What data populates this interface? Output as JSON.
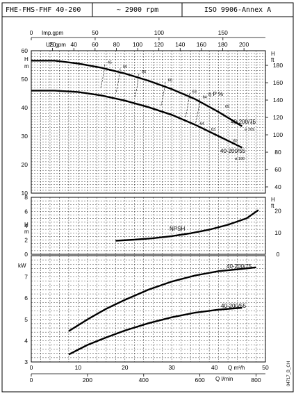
{
  "header": {
    "model": "FHE-FHS-FHF 40-200",
    "speed": "~ 2900 rpm",
    "standard": "ISO 9906-Annex A"
  },
  "axes": {
    "imp_gpm_label": "Imp.gpm",
    "imp_gpm_ticks": [
      "0",
      "50",
      "100",
      "150"
    ],
    "us_gpm_label": "US gpm",
    "us_gpm_ticks": [
      "20",
      "40",
      "60",
      "80",
      "100",
      "120",
      "140",
      "160",
      "180",
      "200"
    ],
    "q_m3h_label": "Q m³/h",
    "q_m3h_ticks": [
      "0",
      "10",
      "20",
      "30",
      "40",
      "50"
    ],
    "q_lmin_label": "Q l/min",
    "q_lmin_ticks": [
      "0",
      "200",
      "400",
      "600",
      "800"
    ],
    "h_m_label": "H\nm",
    "h_ft_label": "H\nft",
    "kw_label": "kW",
    "head_m_ticks": [
      "60",
      "50",
      "40",
      "30",
      "20",
      "10"
    ],
    "head_ft_ticks": [
      "180",
      "160",
      "140",
      "120",
      "100",
      "80",
      "60",
      "40"
    ],
    "npsh_m_ticks": [
      "8",
      "6",
      "4",
      "2",
      "0"
    ],
    "npsh_ft_ticks": [
      "20",
      "10",
      "0"
    ],
    "power_ticks": [
      "7",
      "6",
      "5",
      "4",
      "3"
    ]
  },
  "footer": {
    "code": "04717_B_CH"
  },
  "chart_data": [
    {
      "type": "line",
      "panel": "head",
      "xlabel": "Q m³/h",
      "ylabel": "H m",
      "xlim": [
        0,
        50
      ],
      "ylim": [
        10,
        60
      ],
      "series": [
        {
          "name": "40-200/75 ø 209",
          "x": [
            0,
            5,
            10,
            15,
            20,
            25,
            30,
            35,
            40,
            45
          ],
          "y": [
            56.5,
            56.5,
            55.5,
            54,
            52,
            49.5,
            46.5,
            43,
            38.5,
            33.5
          ]
        },
        {
          "name": "40-200/55 ø 190",
          "x": [
            0,
            5,
            10,
            15,
            20,
            25,
            30,
            35,
            40,
            45
          ],
          "y": [
            46,
            46,
            45.5,
            44.3,
            42.5,
            40.2,
            37.5,
            34,
            30,
            26
          ]
        }
      ],
      "efficiency_label": "η P %",
      "efficiency_labels": [
        {
          "text": "45",
          "x": 15.7,
          "y": 55.2
        },
        {
          "text": "50",
          "x": 19.0,
          "y": 53.8
        },
        {
          "text": "55",
          "x": 23.0,
          "y": 52.0
        },
        {
          "text": "60",
          "x": 28.6,
          "y": 49.0
        },
        {
          "text": "63",
          "x": 33.8,
          "y": 45.0
        },
        {
          "text": "64",
          "x": 36.0,
          "y": 43.0
        },
        {
          "text": "65",
          "x": 40.8,
          "y": 39.8
        },
        {
          "text": "61",
          "x": 46.2,
          "y": 34.0
        },
        {
          "text": "64",
          "x": 35.4,
          "y": 33.8
        },
        {
          "text": "63",
          "x": 37.8,
          "y": 31.7
        },
        {
          "text": "60",
          "x": 42.5,
          "y": 27.7
        }
      ],
      "annotations": [
        "40-200/75",
        "ø 209",
        "40-200/55",
        "ø 190"
      ]
    },
    {
      "type": "line",
      "panel": "npsh",
      "xlabel": "Q m³/h",
      "ylabel": "H m",
      "xlim": [
        0,
        50
      ],
      "ylim": [
        0,
        8
      ],
      "series": [
        {
          "name": "NPSH",
          "x": [
            18,
            22,
            26,
            30,
            34,
            38,
            42,
            46,
            48.5
          ],
          "y": [
            1.9,
            2.05,
            2.25,
            2.55,
            2.95,
            3.45,
            4.15,
            5.05,
            6.2
          ]
        }
      ]
    },
    {
      "type": "line",
      "panel": "power",
      "xlabel": "Q m³/h",
      "ylabel": "kW",
      "xlim": [
        0,
        50
      ],
      "ylim": [
        3,
        8
      ],
      "series": [
        {
          "name": "40-200/75",
          "x": [
            8,
            12,
            16,
            20,
            25,
            30,
            35,
            40,
            45,
            48
          ],
          "y": [
            4.45,
            5.0,
            5.5,
            5.92,
            6.4,
            6.78,
            7.07,
            7.27,
            7.38,
            7.45
          ]
        },
        {
          "name": "40-200/55",
          "x": [
            8,
            12,
            16,
            20,
            25,
            30,
            35,
            40,
            45
          ],
          "y": [
            3.35,
            3.8,
            4.15,
            4.48,
            4.82,
            5.1,
            5.32,
            5.46,
            5.55
          ]
        }
      ]
    }
  ]
}
